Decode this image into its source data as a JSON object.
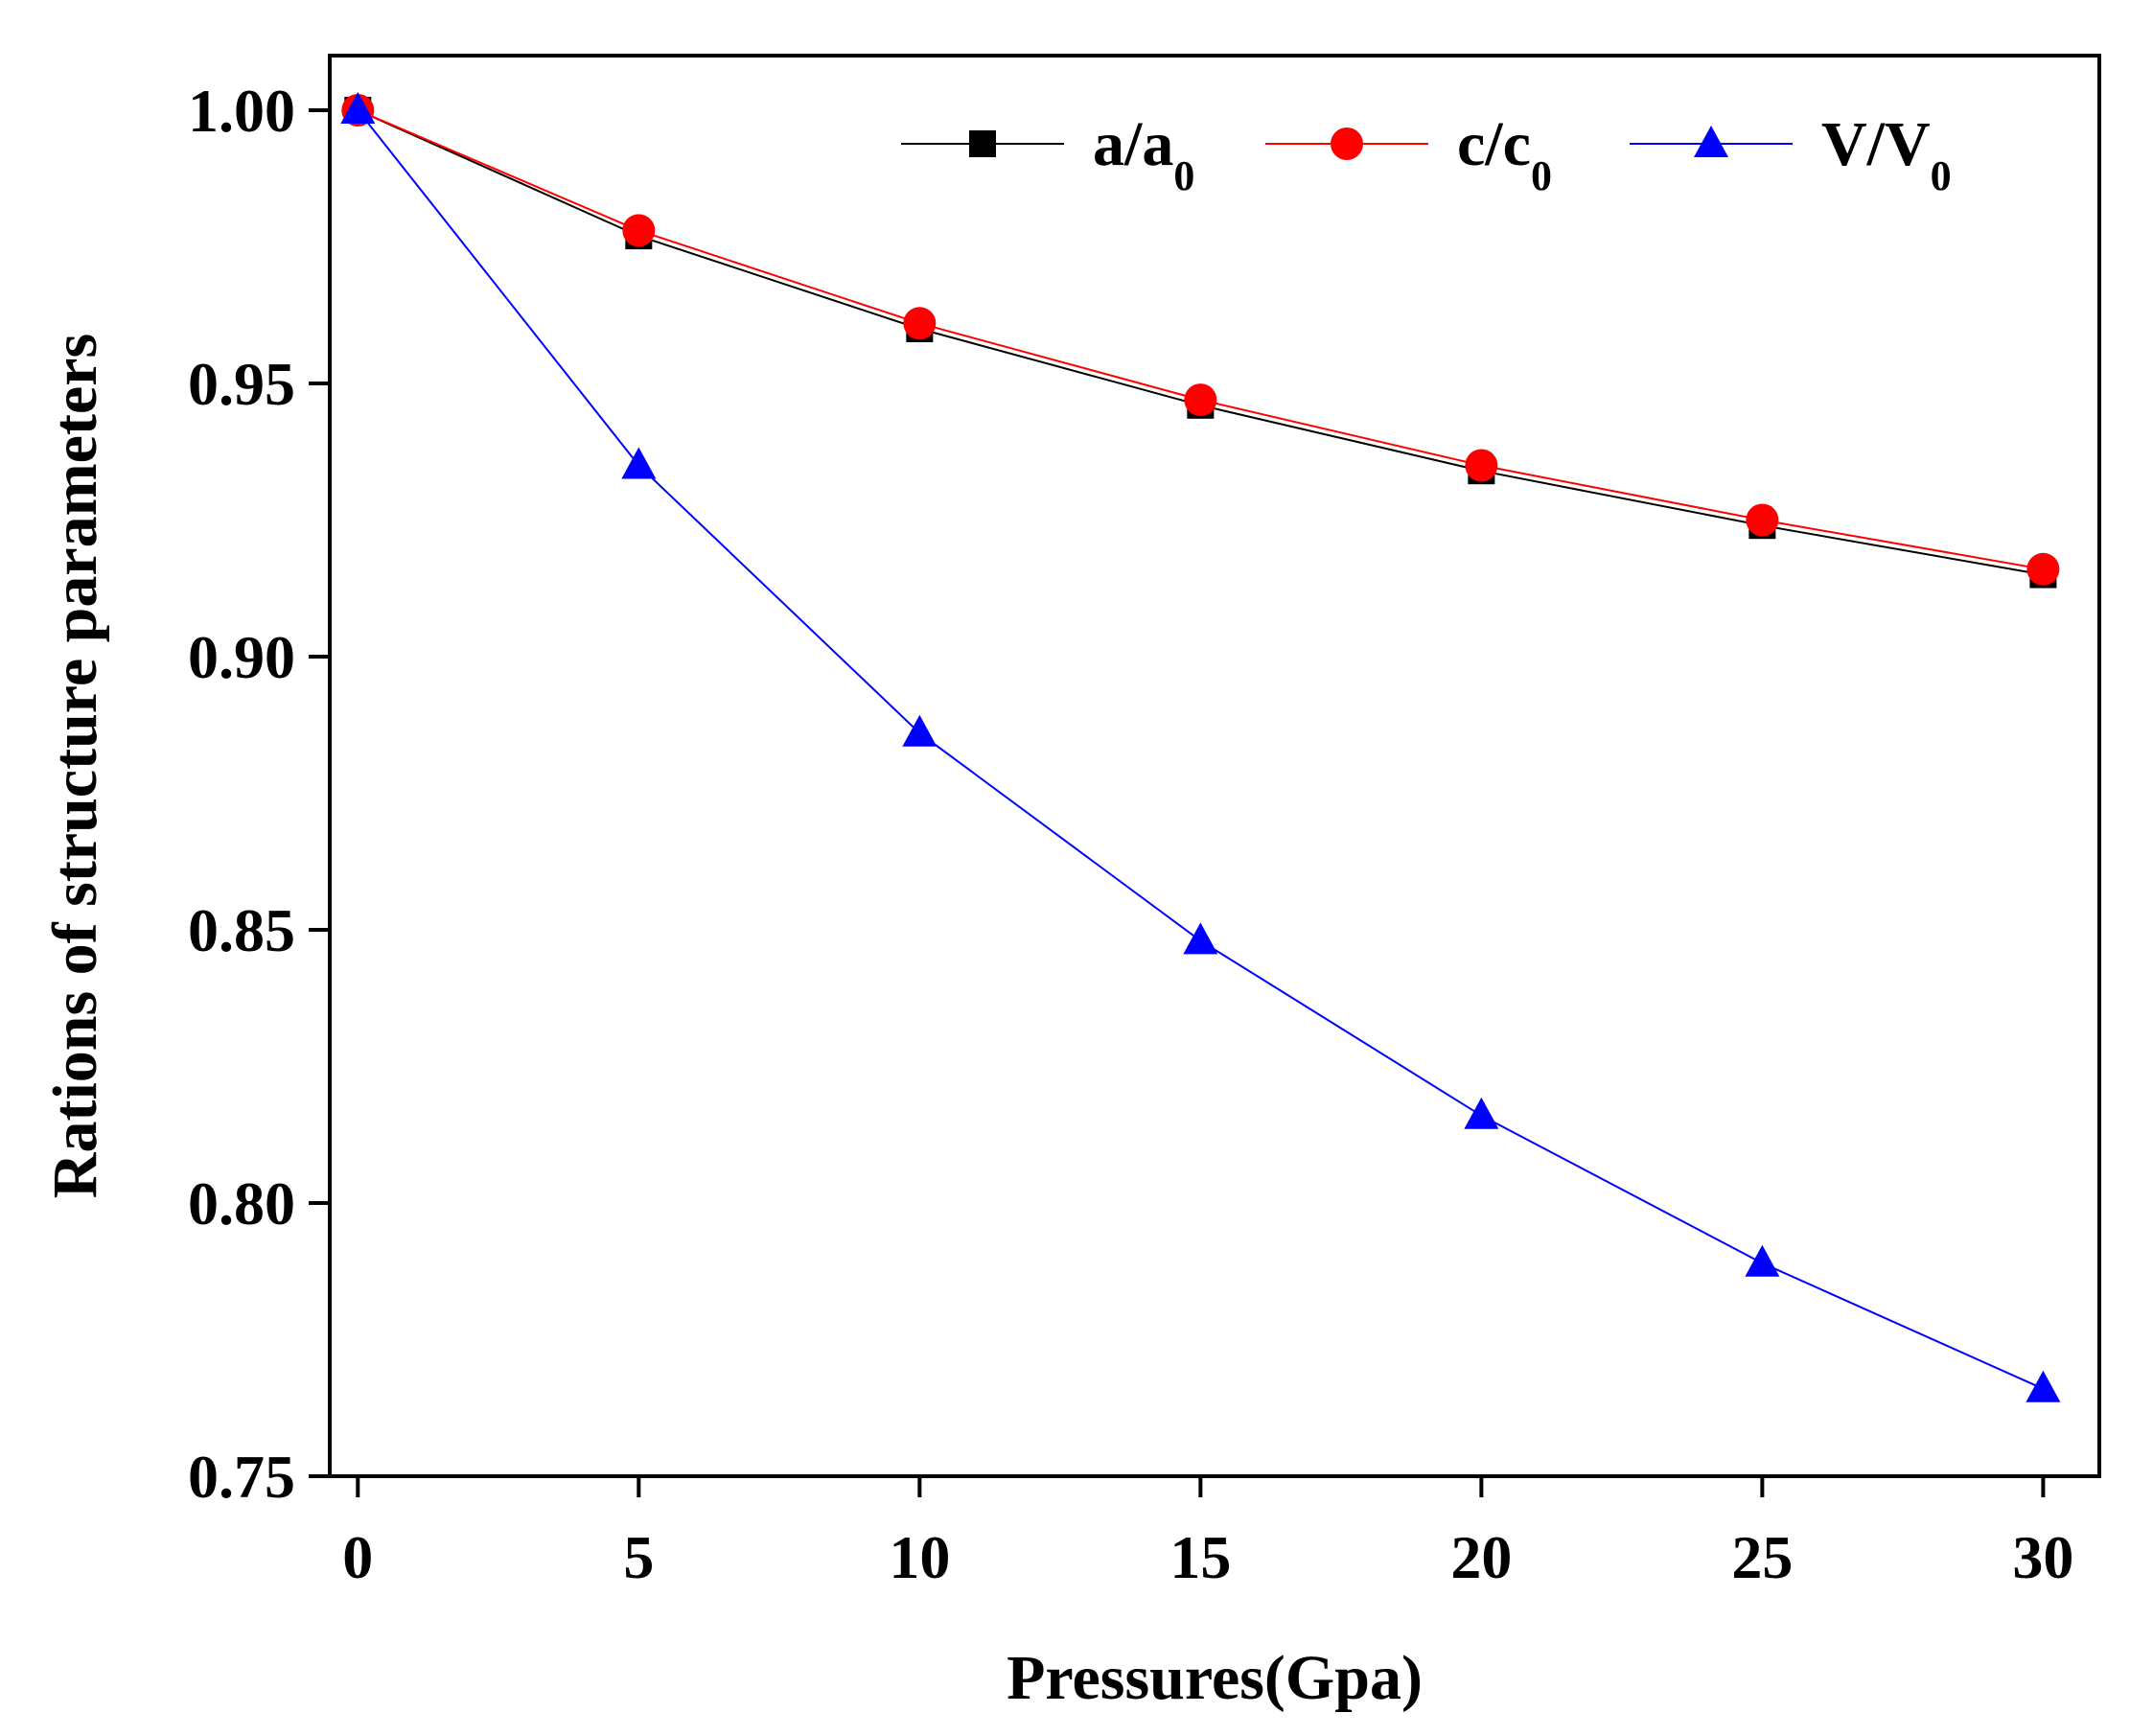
{
  "chart_data": {
    "type": "line",
    "title": "",
    "xlabel": "Pressures(Gpa)",
    "ylabel": "Rations of structure parameters",
    "x": [
      0,
      5,
      10,
      15,
      20,
      25,
      30
    ],
    "xlim": [
      -0.5,
      31
    ],
    "ylim": [
      0.75,
      1.01
    ],
    "xticks": [
      "0",
      "5",
      "10",
      "15",
      "20",
      "25",
      "30"
    ],
    "yticks": [
      "0.75",
      "0.80",
      "0.85",
      "0.90",
      "0.95",
      "1.00"
    ],
    "xtick_values": [
      0,
      5,
      10,
      15,
      20,
      25,
      30
    ],
    "ytick_values": [
      0.75,
      0.8,
      0.85,
      0.9,
      0.95,
      1.0
    ],
    "legend_position": "top-right",
    "series": [
      {
        "name": "a/a0",
        "label_main": "a/a",
        "label_sub": "0",
        "color": "#000000",
        "marker": "square",
        "values": [
          1.0,
          0.977,
          0.96,
          0.946,
          0.934,
          0.924,
          0.915
        ]
      },
      {
        "name": "c/c0",
        "label_main": "c/c",
        "label_sub": "0",
        "color": "#ff0000",
        "marker": "circle",
        "values": [
          1.0,
          0.978,
          0.961,
          0.947,
          0.935,
          0.925,
          0.916
        ]
      },
      {
        "name": "V/V0",
        "label_main": "V/V",
        "label_sub": "0",
        "color": "#0000ff",
        "marker": "triangle",
        "values": [
          1.0,
          0.935,
          0.886,
          0.848,
          0.816,
          0.789,
          0.766
        ]
      }
    ]
  }
}
